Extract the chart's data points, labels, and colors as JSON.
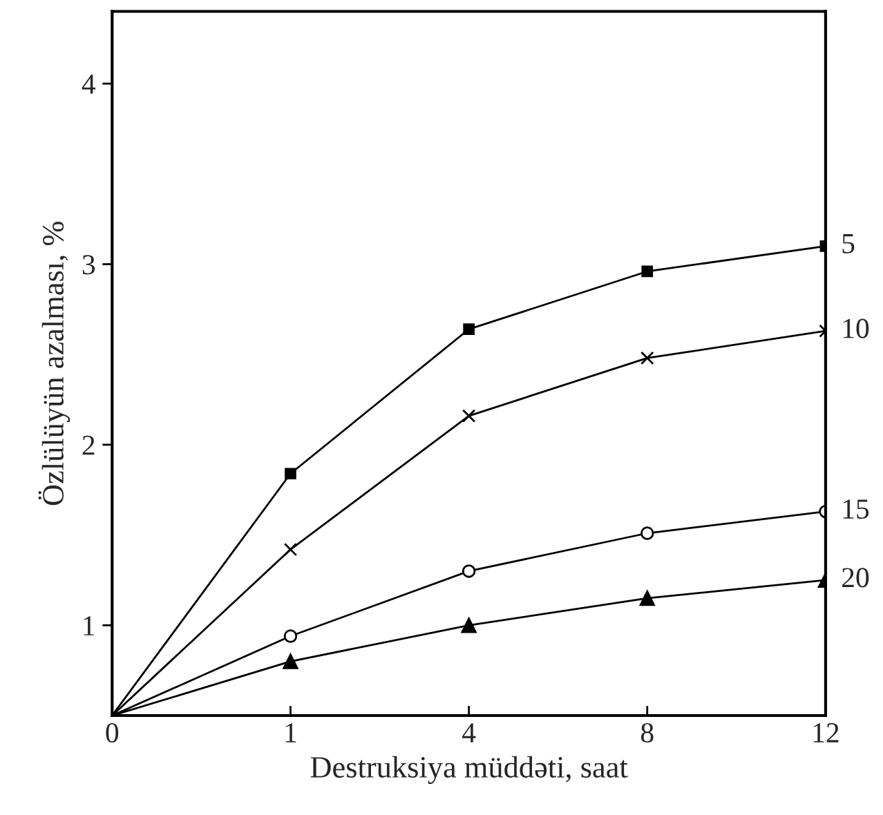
{
  "chart_data": {
    "type": "line",
    "xlabel": "Destruksiya müddəti, saat",
    "ylabel": "Özlülüyün azalması, %",
    "categories": [
      "0",
      "1",
      "4",
      "8",
      "12"
    ],
    "ylim": [
      0.5,
      4.4
    ],
    "yticks": [
      1,
      2,
      3,
      4
    ],
    "grid": false,
    "legend": false,
    "series": [
      {
        "name": "5",
        "color": "#000000",
        "marker": "square",
        "values": [
          0.5,
          1.84,
          2.64,
          2.96,
          3.1
        ]
      },
      {
        "name": "10",
        "color": "#000000",
        "marker": "cross",
        "values": [
          0.5,
          1.42,
          2.16,
          2.48,
          2.63
        ]
      },
      {
        "name": "15",
        "color": "#000000",
        "marker": "circle",
        "values": [
          0.5,
          0.94,
          1.3,
          1.51,
          1.63
        ]
      },
      {
        "name": "20",
        "color": "#000000",
        "marker": "triangle",
        "values": [
          0.5,
          0.8,
          1.0,
          1.15,
          1.25
        ]
      }
    ]
  }
}
